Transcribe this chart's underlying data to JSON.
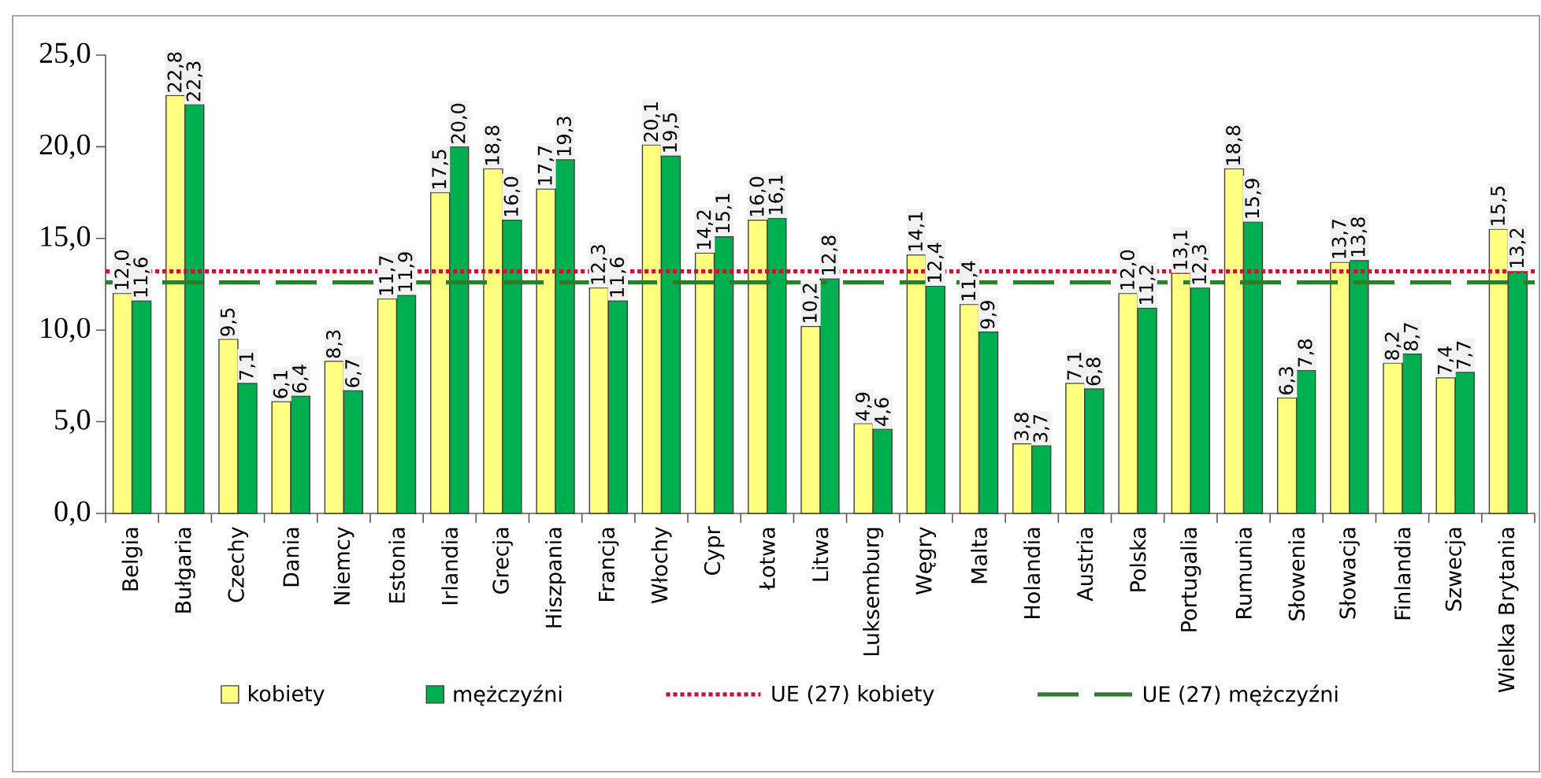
{
  "chart_data": {
    "type": "bar",
    "categories": [
      "Belgia",
      "Bułgaria",
      "Czechy",
      "Dania",
      "Niemcy",
      "Estonia",
      "Irlandia",
      "Grecja",
      "Hiszpania",
      "Francja",
      "Włochy",
      "Cypr",
      "Łotwa",
      "Litwa",
      "Luksemburg",
      "Węgry",
      "Malta",
      "Holandia",
      "Austria",
      "Polska",
      "Portugalia",
      "Rumunia",
      "Słowenia",
      "Słowacja",
      "Finlandia",
      "Szwecja",
      "Wielka Brytania"
    ],
    "series": [
      {
        "name": "kobiety",
        "color": "#ffff80",
        "values": [
          12.0,
          22.8,
          9.5,
          6.1,
          8.3,
          11.7,
          17.5,
          18.8,
          17.7,
          12.3,
          20.1,
          14.2,
          16.0,
          10.2,
          4.9,
          14.1,
          11.4,
          3.8,
          7.1,
          12.0,
          13.1,
          18.8,
          6.3,
          13.7,
          8.2,
          7.4,
          15.5
        ],
        "value_labels": [
          "12,0",
          "22,8",
          "9,5",
          "6,1",
          "8,3",
          "11,7",
          "17,5",
          "18,8",
          "17,7",
          "12,3",
          "20,1",
          "14,2",
          "16,0",
          "10,2",
          "4,9",
          "14,1",
          "11,4",
          "3,8",
          "7,1",
          "12,0",
          "13,1",
          "18,8",
          "6,3",
          "13,7",
          "8,2",
          "7,4",
          "15,5"
        ]
      },
      {
        "name": "mężczyźni",
        "color": "#00b050",
        "values": [
          11.6,
          22.3,
          7.1,
          6.4,
          6.7,
          11.9,
          20.0,
          16.0,
          19.3,
          11.6,
          19.5,
          15.1,
          16.1,
          12.8,
          4.6,
          12.4,
          9.9,
          3.7,
          6.8,
          11.2,
          12.3,
          15.9,
          7.8,
          13.8,
          8.7,
          7.7,
          13.2
        ],
        "value_labels": [
          "11,6",
          "22,3",
          "7,1",
          "6,4",
          "6,7",
          "11,9",
          "20,0",
          "16,0",
          "19,3",
          "11,6",
          "19,5",
          "15,1",
          "16,1",
          "12,8",
          "4,6",
          "12,4",
          "9,9",
          "3,7",
          "6,8",
          "11,2",
          "12,3",
          "15,9",
          "7,8",
          "13,8",
          "8,7",
          "7,7",
          "13,2"
        ]
      }
    ],
    "ylim": [
      0,
      25
    ],
    "yticks": [
      {
        "value": 0,
        "label": "0,0"
      },
      {
        "value": 5,
        "label": "5,0"
      },
      {
        "value": 10,
        "label": "10,0"
      },
      {
        "value": 15,
        "label": "15,0"
      },
      {
        "value": 20,
        "label": "20,0"
      },
      {
        "value": 25,
        "label": "25,0"
      }
    ],
    "ref_lines": [
      {
        "axis": "y",
        "value": 13.2,
        "label": "UE (27) kobiety",
        "color": "#cc1133",
        "line_style": "dotted"
      },
      {
        "axis": "y",
        "value": 12.6,
        "label": "UE (27) mężczyźni",
        "color": "#2a7f2a",
        "line_style": "dashed"
      }
    ],
    "legend": "bottom"
  }
}
